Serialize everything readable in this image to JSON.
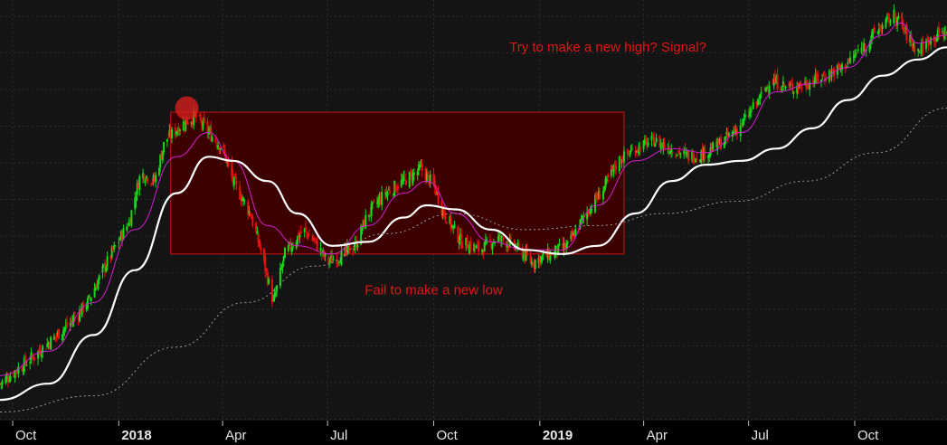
{
  "chart_data": {
    "type": "candlestick",
    "title": "",
    "xlabel": "",
    "ylabel": "",
    "x_ticks": [
      {
        "label": "Oct",
        "bold": false,
        "date": "2017-10-01"
      },
      {
        "label": "2018",
        "bold": true,
        "date": "2018-01-01"
      },
      {
        "label": "Apr",
        "bold": false,
        "date": "2018-04-01"
      },
      {
        "label": "Jul",
        "bold": false,
        "date": "2018-07-01"
      },
      {
        "label": "Oct",
        "bold": false,
        "date": "2018-10-01"
      },
      {
        "label": "2019",
        "bold": true,
        "date": "2019-01-01"
      },
      {
        "label": "Apr",
        "bold": false,
        "date": "2019-04-01"
      },
      {
        "label": "Jul",
        "bold": false,
        "date": "2019-07-01"
      },
      {
        "label": "Oct",
        "bold": false,
        "date": "2019-10-01"
      }
    ],
    "x_range": [
      "2017-09-20",
      "2019-12-20"
    ],
    "y_range": [
      0,
      100
    ],
    "grid": true,
    "price_path": [
      [
        "2017-09-20",
        8
      ],
      [
        "2017-10-20",
        15
      ],
      [
        "2017-11-20",
        23
      ],
      [
        "2017-12-05",
        28
      ],
      [
        "2017-12-20",
        37
      ],
      [
        "2018-01-10",
        48
      ],
      [
        "2018-01-20",
        60
      ],
      [
        "2018-02-01",
        58
      ],
      [
        "2018-02-10",
        68
      ],
      [
        "2018-02-25",
        72
      ],
      [
        "2018-03-08",
        74
      ],
      [
        "2018-03-20",
        70
      ],
      [
        "2018-04-01",
        66
      ],
      [
        "2018-04-10",
        58
      ],
      [
        "2018-04-25",
        50
      ],
      [
        "2018-05-05",
        40
      ],
      [
        "2018-05-15",
        28
      ],
      [
        "2018-05-25",
        40
      ],
      [
        "2018-06-10",
        46
      ],
      [
        "2018-06-20",
        43
      ],
      [
        "2018-07-01",
        38
      ],
      [
        "2018-07-15",
        40
      ],
      [
        "2018-07-25",
        42
      ],
      [
        "2018-08-05",
        50
      ],
      [
        "2018-08-20",
        55
      ],
      [
        "2018-09-05",
        58
      ],
      [
        "2018-09-20",
        61
      ],
      [
        "2018-10-01",
        57
      ],
      [
        "2018-10-10",
        50
      ],
      [
        "2018-10-25",
        43
      ],
      [
        "2018-11-10",
        41
      ],
      [
        "2018-11-25",
        44
      ],
      [
        "2018-12-10",
        42
      ],
      [
        "2018-12-25",
        38
      ],
      [
        "2019-01-10",
        40
      ],
      [
        "2019-01-25",
        42
      ],
      [
        "2019-02-10",
        50
      ],
      [
        "2019-02-25",
        56
      ],
      [
        "2019-03-10",
        63
      ],
      [
        "2019-03-25",
        66
      ],
      [
        "2019-04-10",
        68
      ],
      [
        "2019-04-25",
        66
      ],
      [
        "2019-05-10",
        64
      ],
      [
        "2019-05-25",
        65
      ],
      [
        "2019-06-10",
        68
      ],
      [
        "2019-06-25",
        72
      ],
      [
        "2019-07-10",
        78
      ],
      [
        "2019-07-20",
        83
      ],
      [
        "2019-08-05",
        81
      ],
      [
        "2019-08-20",
        82
      ],
      [
        "2019-09-05",
        84
      ],
      [
        "2019-09-20",
        86
      ],
      [
        "2019-10-05",
        90
      ],
      [
        "2019-10-20",
        95
      ],
      [
        "2019-11-05",
        99
      ],
      [
        "2019-11-15",
        94
      ],
      [
        "2019-11-25",
        90
      ],
      [
        "2019-12-05",
        93
      ],
      [
        "2019-12-20",
        95
      ]
    ],
    "series": [
      {
        "style": "fast-ma",
        "color": "#d21ed2",
        "dash": false,
        "width": 1,
        "points": [
          [
            "2017-09-20",
            10
          ],
          [
            "2017-11-01",
            16
          ],
          [
            "2017-12-10",
            28
          ],
          [
            "2018-01-15",
            46
          ],
          [
            "2018-02-20",
            64
          ],
          [
            "2018-03-20",
            70
          ],
          [
            "2018-04-10",
            63
          ],
          [
            "2018-05-10",
            47
          ],
          [
            "2018-06-05",
            42
          ],
          [
            "2018-07-05",
            40
          ],
          [
            "2018-08-05",
            47
          ],
          [
            "2018-09-05",
            55
          ],
          [
            "2018-09-25",
            58
          ],
          [
            "2018-10-20",
            50
          ],
          [
            "2018-11-20",
            43
          ],
          [
            "2018-12-20",
            41
          ],
          [
            "2019-01-20",
            41
          ],
          [
            "2019-02-20",
            52
          ],
          [
            "2019-03-25",
            63
          ],
          [
            "2019-04-25",
            66
          ],
          [
            "2019-05-25",
            65
          ],
          [
            "2019-06-25",
            70
          ],
          [
            "2019-07-25",
            80
          ],
          [
            "2019-08-25",
            82
          ],
          [
            "2019-09-25",
            86
          ],
          [
            "2019-10-25",
            94
          ],
          [
            "2019-11-10",
            97
          ],
          [
            "2019-11-25",
            92
          ],
          [
            "2019-12-20",
            94
          ]
        ]
      },
      {
        "style": "slow-ma",
        "color": "#ffffff",
        "dash": false,
        "width": 2.2,
        "points": [
          [
            "2017-09-20",
            4
          ],
          [
            "2017-11-01",
            8
          ],
          [
            "2017-12-10",
            20
          ],
          [
            "2018-01-15",
            36
          ],
          [
            "2018-02-20",
            55
          ],
          [
            "2018-03-20",
            64
          ],
          [
            "2018-04-10",
            63
          ],
          [
            "2018-05-10",
            58
          ],
          [
            "2018-06-05",
            50
          ],
          [
            "2018-07-05",
            42
          ],
          [
            "2018-08-05",
            43
          ],
          [
            "2018-09-05",
            49
          ],
          [
            "2018-09-25",
            52
          ],
          [
            "2018-10-20",
            51
          ],
          [
            "2018-11-20",
            46
          ],
          [
            "2018-12-20",
            41
          ],
          [
            "2019-01-20",
            40
          ],
          [
            "2019-02-20",
            42
          ],
          [
            "2019-03-25",
            50
          ],
          [
            "2019-04-25",
            58
          ],
          [
            "2019-05-25",
            62
          ],
          [
            "2019-06-25",
            63
          ],
          [
            "2019-07-25",
            66
          ],
          [
            "2019-08-25",
            71
          ],
          [
            "2019-09-25",
            78
          ],
          [
            "2019-10-25",
            84
          ],
          [
            "2019-11-25",
            88
          ],
          [
            "2019-12-20",
            91
          ]
        ]
      },
      {
        "style": "long-ma",
        "color": "#9a9a9a",
        "dash": true,
        "width": 1,
        "points": [
          [
            "2017-09-20",
            1
          ],
          [
            "2017-12-10",
            5
          ],
          [
            "2018-02-20",
            17
          ],
          [
            "2018-04-20",
            28
          ],
          [
            "2018-06-20",
            37
          ],
          [
            "2018-08-20",
            45
          ],
          [
            "2018-10-20",
            50
          ],
          [
            "2018-12-20",
            46
          ],
          [
            "2019-02-20",
            47
          ],
          [
            "2019-04-20",
            50
          ],
          [
            "2019-06-20",
            53
          ],
          [
            "2019-08-20",
            58
          ],
          [
            "2019-10-20",
            65
          ],
          [
            "2019-12-20",
            76
          ]
        ]
      }
    ],
    "candle_colors": {
      "up": "#19d719",
      "down": "#e81010"
    },
    "annotations": [
      {
        "text": "Try to make a new high? Signal?",
        "color": "#e61515",
        "at": [
          "2019-03-01",
          90
        ]
      },
      {
        "text": "Fail to make a new low",
        "color": "#e61515",
        "at": [
          "2018-10-01",
          30
        ]
      }
    ],
    "highlight_box": {
      "x": [
        "2018-02-15",
        "2019-03-15"
      ],
      "y": [
        40,
        75
      ],
      "fill": "#3c0000",
      "stroke": "#c81414"
    },
    "marker": {
      "at": [
        "2018-03-01",
        76
      ],
      "color": "#e01e1e"
    }
  }
}
